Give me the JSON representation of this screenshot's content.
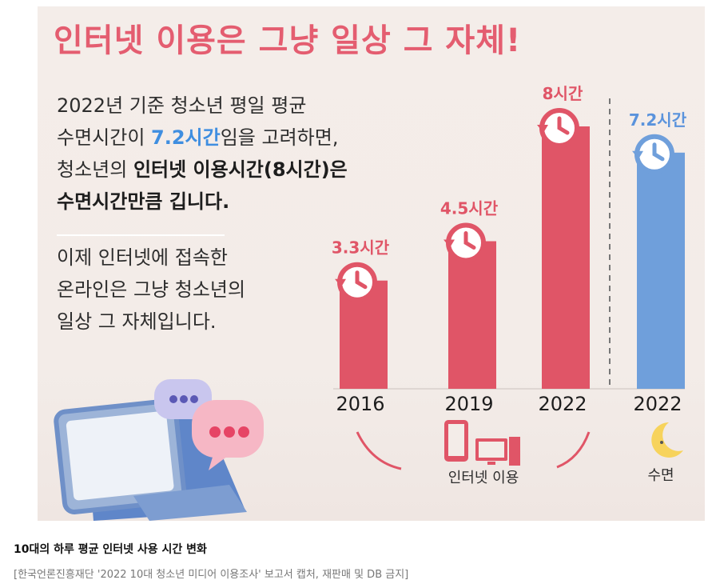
{
  "poster": {
    "title": "인터넷 이용은 그냥 일상 그 자체!",
    "para1": {
      "l1": "2022년 기준 청소년 평일 평균",
      "l2_a": "수면시간이 ",
      "l2_hl": "7.2시간",
      "l2_b": "임을 고려하면,",
      "l3_a": "청소년의 ",
      "l3_b": "인터넷 이용시간(8시간)은",
      "l4": "수면시간만큼 깁니다."
    },
    "para2": {
      "l1": "이제 인터넷에 접속한",
      "l2": "온라인은 그냥 청소년의",
      "l3": "일상 그 자체입니다."
    },
    "internet_group_label": "인터넷 이용",
    "sleep_group_label": "수면"
  },
  "chart_data": {
    "type": "bar",
    "categories": [
      "2016",
      "2019",
      "2022",
      "2022"
    ],
    "series": [
      {
        "name": "인터넷 이용",
        "values": [
          3.3,
          4.5,
          8.0,
          null
        ]
      },
      {
        "name": "수면",
        "values": [
          null,
          null,
          null,
          7.2
        ]
      }
    ],
    "data_labels": [
      "3.3시간",
      "4.5시간",
      "8시간",
      "7.2시간"
    ],
    "colors": [
      "#e05567",
      "#e05567",
      "#e05567",
      "#6f9fdb"
    ],
    "label_colors": [
      "#e05567",
      "#e05567",
      "#e05567",
      "#5a93dc"
    ],
    "ylim": [
      0,
      8
    ],
    "grid": false,
    "legend": "none"
  },
  "caption": "10대의 하루 평균 인터넷 사용 시간 변화",
  "source": "[한국언론진흥재단 '2022 10대 청소년 미디어 이용조사' 보고서 캡처, 재판매 및 DB 금지]"
}
